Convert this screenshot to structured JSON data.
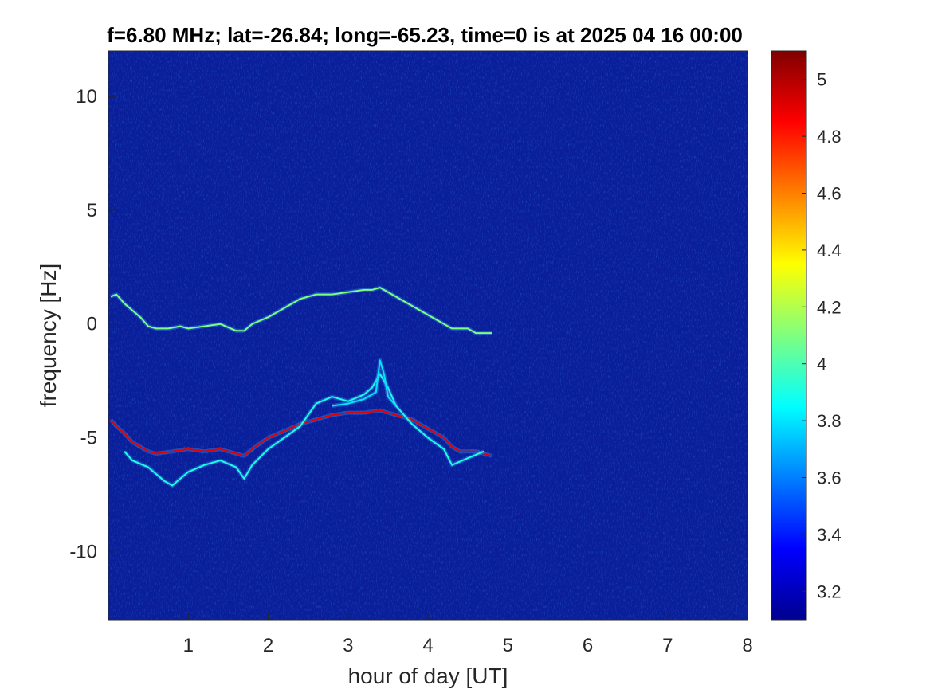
{
  "chart_data": {
    "type": "heatmap",
    "title": "f=6.80 MHz;  lat=-26.84; long=-65.23, time=0 is at 2025 04 16 00:00",
    "xlabel": "hour of day [UT]",
    "ylabel": "frequency [Hz]",
    "xlim": [
      0,
      8
    ],
    "ylim": [
      -13,
      12
    ],
    "x_ticks": [
      1,
      2,
      3,
      4,
      5,
      6,
      7,
      8
    ],
    "x_tick_labels": [
      "1",
      "2",
      "3",
      "4",
      "5",
      "6",
      "7",
      "8"
    ],
    "y_ticks": [
      10,
      5,
      0,
      -5,
      -10
    ],
    "y_tick_labels": [
      "10",
      "5",
      "0",
      "-5",
      "-10"
    ],
    "colormap": "jet",
    "background_color": "#0a1e9a",
    "colorbar": {
      "range": [
        3.1,
        5.1
      ],
      "ticks": [
        5,
        4.8,
        4.6,
        4.4,
        4.2,
        4,
        3.8,
        3.6,
        3.4,
        3.2
      ],
      "tick_labels": [
        "5",
        "4.8",
        "4.6",
        "4.4",
        "4.2",
        "4",
        "3.8",
        "3.6",
        "3.4",
        "3.2"
      ],
      "placement": "right"
    },
    "traces": [
      {
        "intensity": 4.1,
        "points": [
          [
            0.03,
            1.2
          ],
          [
            0.1,
            1.3
          ],
          [
            0.2,
            0.9
          ],
          [
            0.3,
            0.6
          ],
          [
            0.4,
            0.3
          ],
          [
            0.5,
            -0.1
          ],
          [
            0.6,
            -0.2
          ],
          [
            0.75,
            -0.2
          ],
          [
            0.9,
            -0.1
          ],
          [
            1.0,
            -0.2
          ],
          [
            1.2,
            -0.1
          ],
          [
            1.4,
            0.0
          ],
          [
            1.6,
            -0.3
          ],
          [
            1.7,
            -0.3
          ],
          [
            1.8,
            0.0
          ],
          [
            2.0,
            0.3
          ],
          [
            2.2,
            0.7
          ],
          [
            2.4,
            1.1
          ],
          [
            2.6,
            1.3
          ],
          [
            2.8,
            1.3
          ],
          [
            3.0,
            1.4
          ],
          [
            3.2,
            1.5
          ],
          [
            3.3,
            1.5
          ],
          [
            3.4,
            1.6
          ],
          [
            3.5,
            1.4
          ],
          [
            3.7,
            1.0
          ],
          [
            3.9,
            0.6
          ],
          [
            4.1,
            0.2
          ],
          [
            4.3,
            -0.2
          ],
          [
            4.5,
            -0.2
          ],
          [
            4.6,
            -0.4
          ],
          [
            4.8,
            -0.4
          ]
        ]
      },
      {
        "intensity": 4.9,
        "points": [
          [
            0.03,
            -4.2
          ],
          [
            0.1,
            -4.5
          ],
          [
            0.2,
            -4.8
          ],
          [
            0.3,
            -5.2
          ],
          [
            0.4,
            -5.4
          ],
          [
            0.5,
            -5.6
          ],
          [
            0.6,
            -5.7
          ],
          [
            0.8,
            -5.6
          ],
          [
            1.0,
            -5.5
          ],
          [
            1.2,
            -5.6
          ],
          [
            1.4,
            -5.5
          ],
          [
            1.6,
            -5.7
          ],
          [
            1.7,
            -5.8
          ],
          [
            1.8,
            -5.5
          ],
          [
            2.0,
            -5.0
          ],
          [
            2.2,
            -4.7
          ],
          [
            2.4,
            -4.4
          ],
          [
            2.6,
            -4.2
          ],
          [
            2.8,
            -4.0
          ],
          [
            3.0,
            -3.9
          ],
          [
            3.2,
            -3.9
          ],
          [
            3.4,
            -3.8
          ],
          [
            3.6,
            -4.0
          ],
          [
            3.8,
            -4.2
          ],
          [
            4.0,
            -4.6
          ],
          [
            4.2,
            -5.0
          ],
          [
            4.3,
            -5.4
          ],
          [
            4.4,
            -5.6
          ],
          [
            4.6,
            -5.6
          ],
          [
            4.8,
            -5.8
          ]
        ]
      },
      {
        "intensity": 3.9,
        "points": [
          [
            0.2,
            -5.6
          ],
          [
            0.3,
            -6.0
          ],
          [
            0.5,
            -6.3
          ],
          [
            0.6,
            -6.6
          ],
          [
            0.7,
            -6.9
          ],
          [
            0.8,
            -7.1
          ],
          [
            0.9,
            -6.8
          ],
          [
            1.0,
            -6.5
          ],
          [
            1.2,
            -6.2
          ],
          [
            1.4,
            -6.0
          ],
          [
            1.6,
            -6.3
          ],
          [
            1.7,
            -6.8
          ],
          [
            1.8,
            -6.2
          ],
          [
            2.0,
            -5.5
          ],
          [
            2.2,
            -5.0
          ],
          [
            2.4,
            -4.5
          ],
          [
            2.5,
            -4.0
          ],
          [
            2.6,
            -3.5
          ],
          [
            2.8,
            -3.2
          ],
          [
            3.0,
            -3.4
          ],
          [
            3.2,
            -3.1
          ],
          [
            3.3,
            -2.8
          ],
          [
            3.4,
            -2.2
          ],
          [
            3.5,
            -2.8
          ],
          [
            3.6,
            -3.6
          ],
          [
            3.8,
            -4.4
          ],
          [
            4.0,
            -5.0
          ],
          [
            4.2,
            -5.5
          ],
          [
            4.3,
            -6.2
          ],
          [
            4.5,
            -5.9
          ],
          [
            4.7,
            -5.6
          ]
        ]
      },
      {
        "intensity": 3.8,
        "points": [
          [
            2.8,
            -3.6
          ],
          [
            3.0,
            -3.5
          ],
          [
            3.2,
            -3.3
          ],
          [
            3.35,
            -3.0
          ],
          [
            3.4,
            -1.6
          ],
          [
            3.45,
            -2.2
          ],
          [
            3.5,
            -3.2
          ],
          [
            3.6,
            -3.6
          ]
        ]
      }
    ]
  }
}
